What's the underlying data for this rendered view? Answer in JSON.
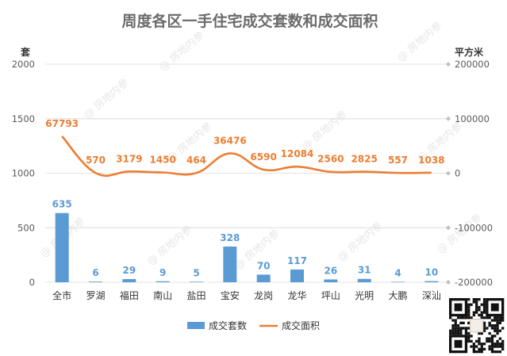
{
  "chart_data": {
    "type": "bar",
    "title": "周度各区一手住宅成交套数和成交面积",
    "categories": [
      "全市",
      "罗湖",
      "福田",
      "南山",
      "盐田",
      "宝安",
      "龙岗",
      "龙华",
      "坪山",
      "光明",
      "大鹏",
      "深汕"
    ],
    "series": [
      {
        "name": "成交套数",
        "type": "bar",
        "axis": "left",
        "color": "#5b9bd5",
        "values": [
          635,
          6,
          29,
          9,
          5,
          328,
          70,
          117,
          26,
          31,
          4,
          10
        ],
        "labels": [
          "635",
          "6",
          "29",
          "9",
          "5",
          "328",
          "70",
          "117",
          "26",
          "31",
          "4",
          "10"
        ]
      },
      {
        "name": "成交面积",
        "type": "line",
        "axis": "right",
        "color": "#ed7d31",
        "values": [
          67793,
          570,
          3179,
          1450,
          464,
          36476,
          6590,
          12084,
          2560,
          2825,
          557,
          1038
        ],
        "labels": [
          "67793",
          "570",
          "3179",
          "1450",
          "464",
          "36476",
          "6590",
          "12084",
          "2560",
          "2825",
          "557",
          "1038"
        ]
      }
    ],
    "left_axis": {
      "unit_label": "套",
      "ylim": [
        0,
        2000
      ],
      "ticks": [
        0,
        500,
        1000,
        1500,
        2000
      ],
      "tick_labels": [
        "0",
        "500",
        "1000",
        "1500",
        "2000"
      ]
    },
    "right_axis": {
      "unit_label": "平方米",
      "ylim": [
        -200000,
        200000
      ],
      "ticks": [
        -200000,
        -100000,
        0,
        100000,
        200000
      ],
      "tick_labels": [
        "-200000",
        "-100000",
        "0",
        "100000",
        "200000"
      ]
    },
    "grid": true,
    "legend_position": "bottom"
  },
  "watermarks": [
    "房地内参",
    "房地内参",
    "房地内参",
    "房地内参",
    "房地内参",
    "房地内参",
    "房地内参",
    "房地内参",
    "房地内参",
    "房地内参",
    "房地内参"
  ],
  "qr_code": "qr-code-icon"
}
